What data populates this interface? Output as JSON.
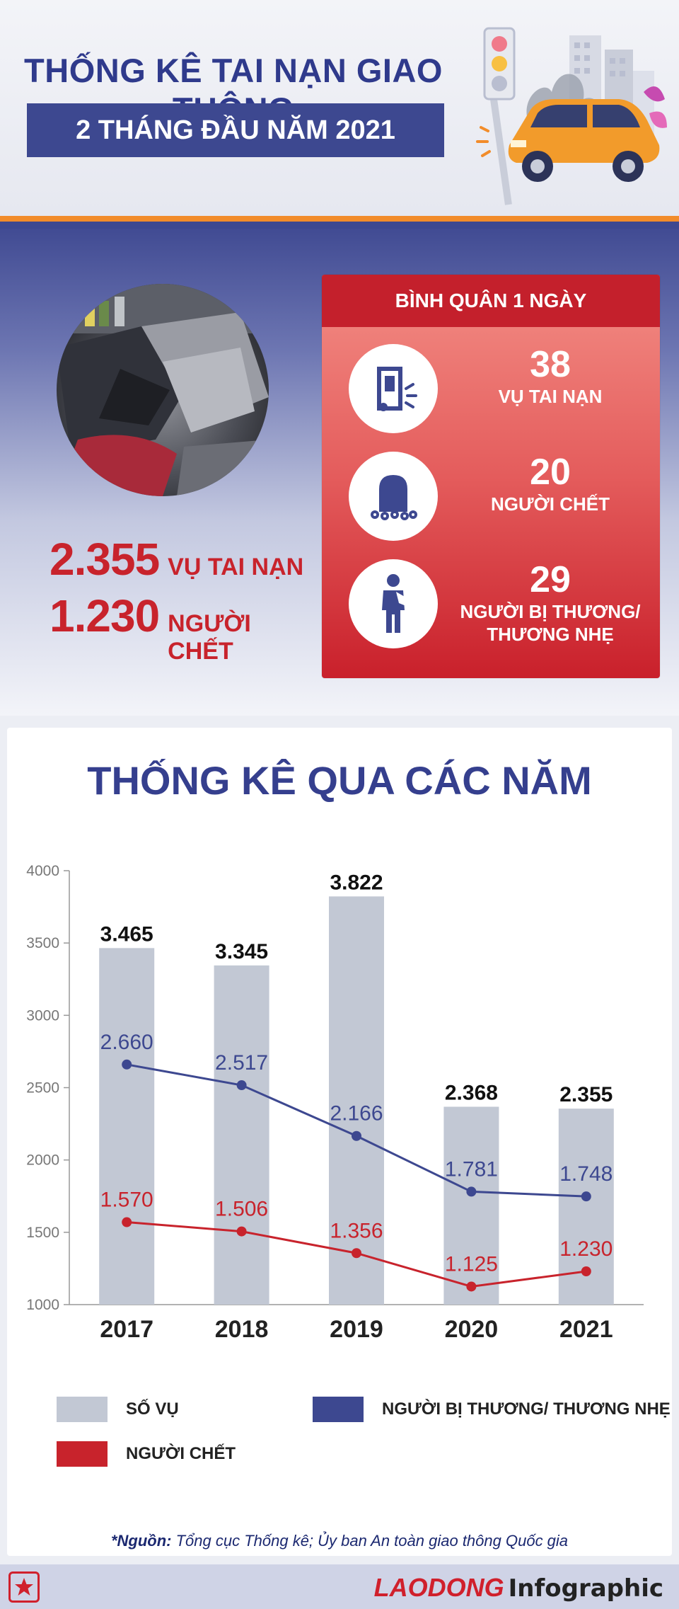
{
  "header": {
    "title": "THỐNG KÊ TAI NẠN GIAO THÔNG",
    "subtitle": "2 THÁNG ĐẦU NĂM 2021"
  },
  "summary": {
    "accidents_value": "2.355",
    "accidents_label": "VỤ TAI NẠN",
    "deaths_value": "1.230",
    "deaths_label": "NGƯỜI CHẾT"
  },
  "daily_average": {
    "heading": "BÌNH QUÂN 1 NGÀY",
    "items": [
      {
        "value": "38",
        "label": "VỤ TAI NẠN",
        "icon": "crash-icon"
      },
      {
        "value": "20",
        "label": "NGƯỜI CHẾT",
        "icon": "grave-icon"
      },
      {
        "value": "29",
        "label": "NGƯỜI BỊ THƯƠNG/ THƯƠNG NHẸ",
        "icon": "injured-person-icon"
      }
    ]
  },
  "chart_section": {
    "title": "THỐNG KÊ QUA CÁC NĂM",
    "legend": {
      "bars": "SỐ VỤ",
      "injured": "NGƯỜI BỊ THƯƠNG/ THƯƠNG NHẸ",
      "deaths": "NGƯỜI CHẾT"
    },
    "source_prefix": "*Nguồn:",
    "source_text": " Tổng cục Thống kê; Ủy ban An toàn giao thông Quốc gia"
  },
  "colors": {
    "bar": "#c2c8d4",
    "injured_line": "#3d4890",
    "death_line": "#c8232c",
    "title_blue": "#353f8e",
    "accent_red": "#c8232c"
  },
  "chart_data": {
    "type": "bar",
    "categories": [
      "2017",
      "2018",
      "2019",
      "2020",
      "2021"
    ],
    "ylim": [
      1000,
      4000
    ],
    "yticks": [
      1000,
      1500,
      2000,
      2500,
      3000,
      3500,
      4000
    ],
    "series": [
      {
        "name": "SỐ VỤ",
        "type": "bar",
        "values": [
          3465,
          3345,
          3822,
          2368,
          2355
        ],
        "labels": [
          "3.465",
          "3.345",
          "3.822",
          "2.368",
          "2.355"
        ]
      },
      {
        "name": "NGƯỜI BỊ THƯƠNG/ THƯƠNG NHẸ",
        "type": "line",
        "values": [
          2660,
          2517,
          2166,
          1781,
          1748
        ],
        "labels": [
          "2.660",
          "2.517",
          "2.166",
          "1.781",
          "1.748"
        ]
      },
      {
        "name": "NGƯỜI CHẾT",
        "type": "line",
        "values": [
          1570,
          1506,
          1356,
          1125,
          1230
        ],
        "labels": [
          "1.570",
          "1.506",
          "1.356",
          "1.125",
          "1.230"
        ]
      }
    ],
    "title": "THỐNG KÊ QUA CÁC NĂM",
    "legend_position": "bottom",
    "grid": false
  },
  "footer": {
    "brand_red": "LAODONG",
    "brand_black": "Infographic"
  }
}
